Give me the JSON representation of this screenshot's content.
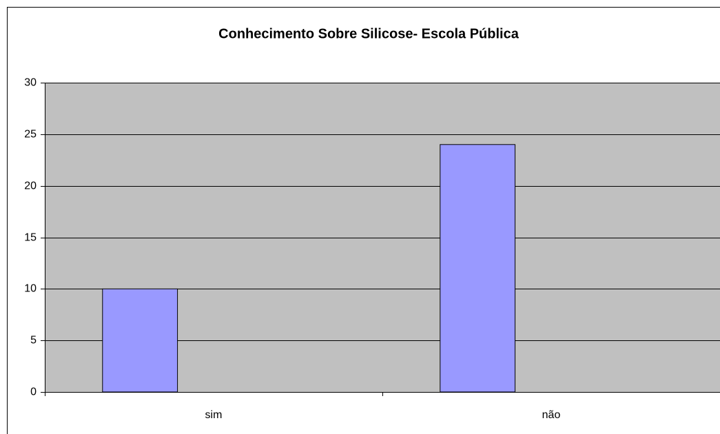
{
  "chart_data": {
    "type": "bar",
    "title": "Conhecimento Sobre Silicose- Escola Pública",
    "categories": [
      "sim",
      "não"
    ],
    "values": [
      10,
      24
    ],
    "color": "#9999ff",
    "ylim": [
      0,
      30
    ],
    "yticks": [
      0,
      5,
      10,
      15,
      20,
      25,
      30
    ],
    "grid": true
  }
}
